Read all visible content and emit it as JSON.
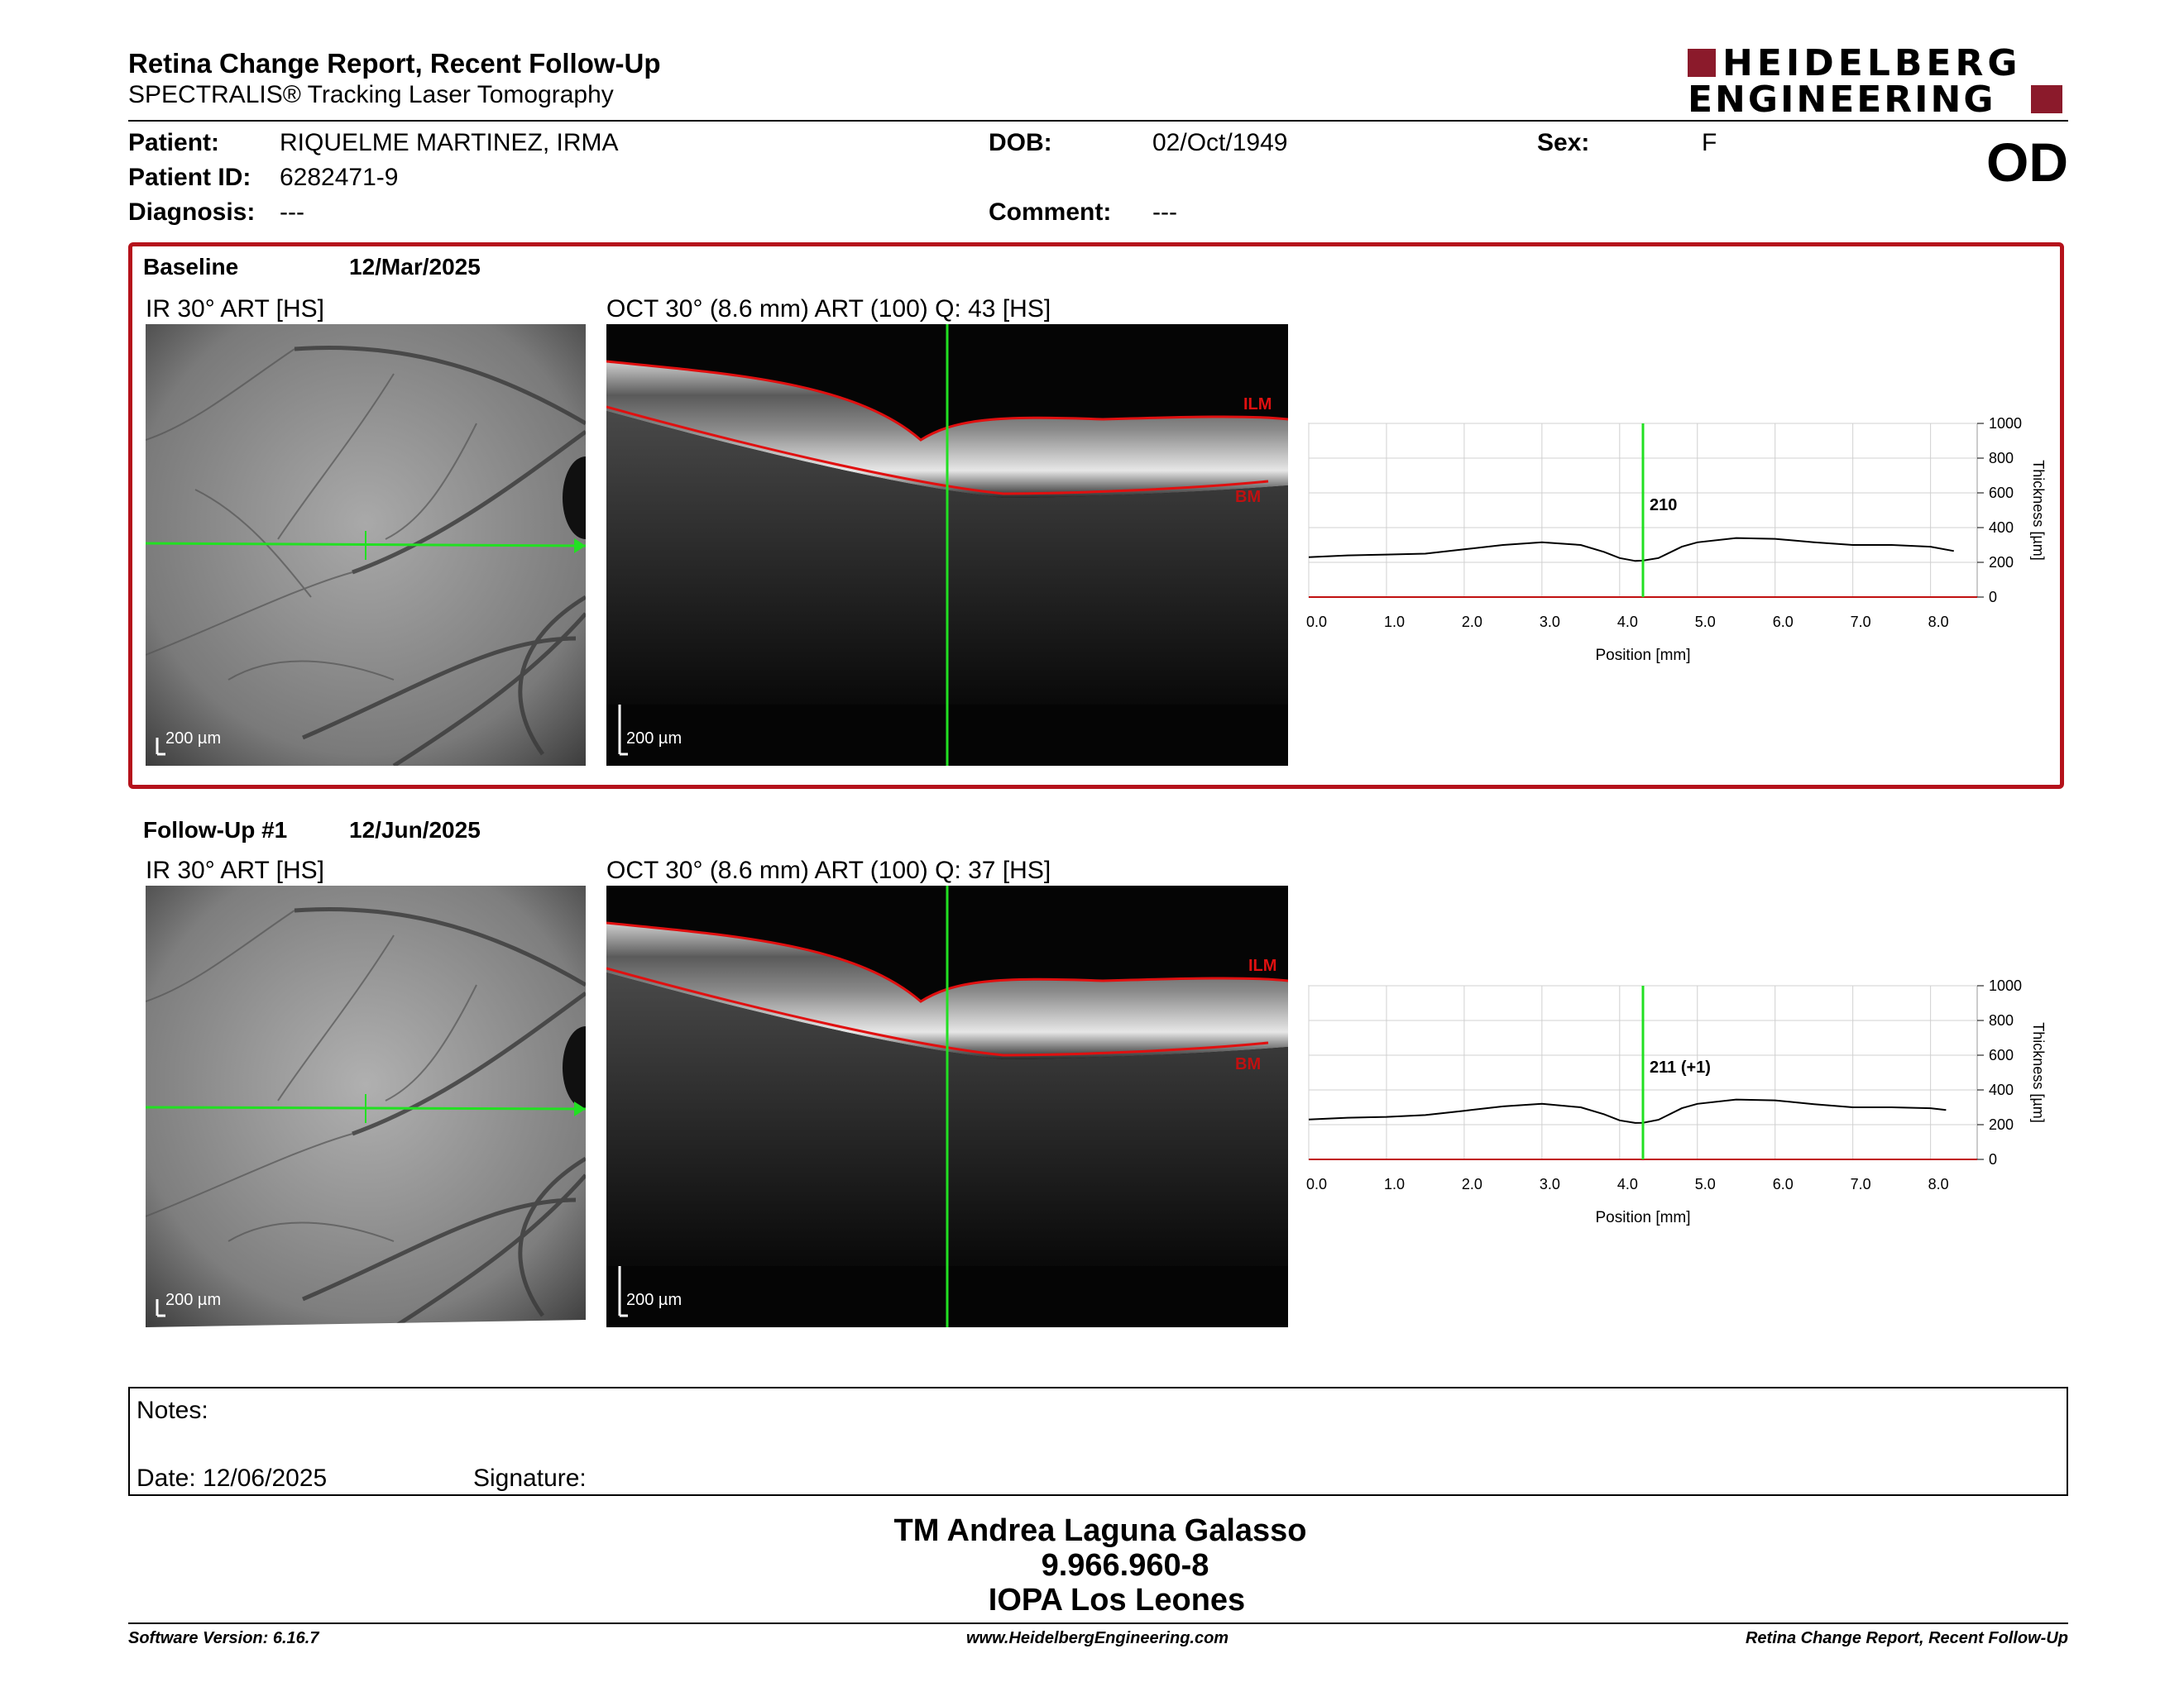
{
  "header": {
    "title": "Retina Change Report, Recent Follow-Up",
    "subtitle": "SPECTRALIS® Tracking Laser Tomography",
    "logo_line1": "HEIDELBERG",
    "logo_line2": "ENGINEERING",
    "brand_color": "#8b1a2b"
  },
  "patient": {
    "patient_label": "Patient:",
    "patient_value": "RIQUELME MARTINEZ, IRMA",
    "id_label": "Patient ID:",
    "id_value": "6282471-9",
    "diagnosis_label": "Diagnosis:",
    "diagnosis_value": "---",
    "dob_label": "DOB:",
    "dob_value": "02/Oct/1949",
    "comment_label": "Comment:",
    "comment_value": "---",
    "sex_label": "Sex:",
    "sex_value": "F",
    "eye": "OD"
  },
  "baseline": {
    "label": "Baseline",
    "date": "12/Mar/2025",
    "ir_label": "IR 30° ART [HS]",
    "oct_label": "OCT 30° (8.6 mm) ART (100) Q: 43 [HS]",
    "scale": "200 µm",
    "ilm": "ILM",
    "bm": "BM",
    "thickness_label": "210"
  },
  "followup": {
    "label": "Follow-Up #1",
    "date": "12/Jun/2025",
    "ir_label": "IR 30° ART [HS]",
    "oct_label": "OCT 30° (8.6 mm) ART (100) Q: 37 [HS]",
    "scale": "200 µm",
    "ilm": "ILM",
    "bm": "BM",
    "thickness_label": "211 (+1)"
  },
  "chart_data": [
    {
      "type": "line",
      "xlabel": "Position [mm]",
      "ylabel": "Thickness [µm]",
      "xlim": [
        0,
        8.6
      ],
      "ylim": [
        0,
        1000
      ],
      "xticks": [
        "0.0",
        "1.0",
        "2.0",
        "3.0",
        "4.0",
        "5.0",
        "6.0",
        "7.0",
        "8.0"
      ],
      "yticks": [
        "0",
        "200",
        "400",
        "600",
        "800",
        "1000"
      ],
      "cursor_x": 4.3,
      "series": [
        {
          "x": [
            0,
            0.5,
            1.0,
            1.5,
            2.0,
            2.5,
            3.0,
            3.5,
            3.8,
            4.0,
            4.2,
            4.3,
            4.5,
            4.8,
            5.0,
            5.5,
            6.0,
            6.5,
            7.0,
            7.5,
            8.0,
            8.3
          ],
          "values": [
            230,
            240,
            245,
            250,
            275,
            300,
            315,
            300,
            260,
            225,
            208,
            210,
            225,
            290,
            315,
            340,
            335,
            315,
            300,
            300,
            290,
            265
          ]
        }
      ]
    },
    {
      "type": "line",
      "xlabel": "Position [mm]",
      "ylabel": "Thickness [µm]",
      "xlim": [
        0,
        8.6
      ],
      "ylim": [
        0,
        1000
      ],
      "xticks": [
        "0.0",
        "1.0",
        "2.0",
        "3.0",
        "4.0",
        "5.0",
        "6.0",
        "7.0",
        "8.0"
      ],
      "yticks": [
        "0",
        "200",
        "400",
        "600",
        "800",
        "1000"
      ],
      "cursor_x": 4.3,
      "series": [
        {
          "x": [
            0,
            0.5,
            1.0,
            1.5,
            2.0,
            2.5,
            3.0,
            3.5,
            3.8,
            4.0,
            4.2,
            4.3,
            4.5,
            4.8,
            5.0,
            5.5,
            6.0,
            6.5,
            7.0,
            7.5,
            8.0,
            8.2
          ],
          "values": [
            230,
            240,
            245,
            255,
            280,
            305,
            320,
            300,
            260,
            225,
            210,
            211,
            228,
            295,
            320,
            345,
            340,
            318,
            300,
            300,
            295,
            285
          ]
        }
      ]
    }
  ],
  "notes": {
    "label": "Notes:",
    "date_label": "Date: 12/06/2025",
    "signature_label": "Signature:"
  },
  "signature_block": {
    "name": "TM Andrea Laguna Galasso",
    "rut": "9.966.960-8",
    "institution": "IOPA Los Leones"
  },
  "footer": {
    "software": "Software Version: 6.16.7",
    "website": "www.HeidelbergEngineering.com",
    "report": "Retina Change Report, Recent Follow-Up"
  }
}
